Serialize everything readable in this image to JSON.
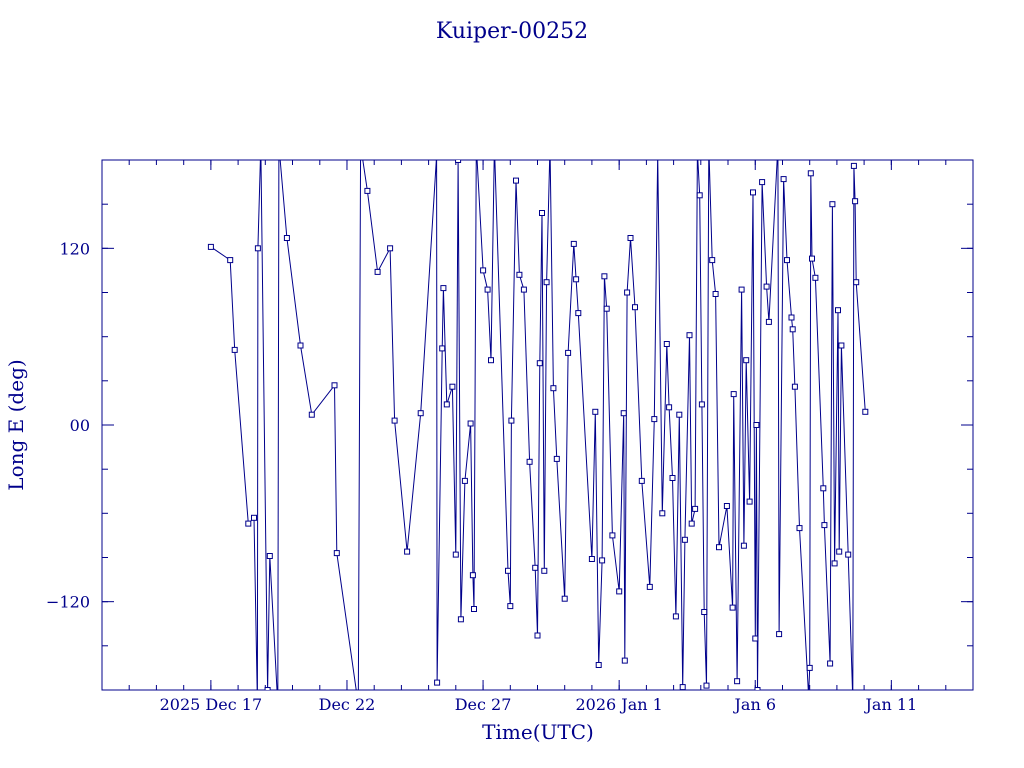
{
  "chart_data": {
    "type": "line",
    "title": "Kuiper-00252",
    "xlabel": "Time(UTC)",
    "ylabel": "Long E (deg)",
    "x_range": [
      "2025-12-13",
      "2026-01-14"
    ],
    "ylim": [
      -180,
      180
    ],
    "grid": false,
    "x_ticks": [
      {
        "date": "2025-12-17",
        "label": "2025 Dec 17"
      },
      {
        "date": "2025-12-22",
        "label": "Dec 22"
      },
      {
        "date": "2025-12-27",
        "label": "Dec 27"
      },
      {
        "date": "2026-01-01",
        "label": "2026 Jan  1"
      },
      {
        "date": "2026-01-06",
        "label": "Jan  6"
      },
      {
        "date": "2026-01-11",
        "label": "Jan 11"
      }
    ],
    "y_ticks": [
      {
        "value": 120,
        "label": "120"
      },
      {
        "value": 0,
        "label": "00"
      },
      {
        "value": -120,
        "label": "−120"
      }
    ],
    "colors": {
      "line": "#00008b",
      "axis": "#00008b"
    },
    "series": [
      {
        "points": [
          {
            "x": "2025-12-17T00:00",
            "y": 121
          },
          {
            "x": "2025-12-17T17:00",
            "y": 112
          },
          {
            "x": "2025-12-17T21:00",
            "y": 51
          },
          {
            "x": "2025-12-18T09:00",
            "y": -67
          },
          {
            "x": "2025-12-18T14:00",
            "y": -63
          },
          {
            "x": "2025-12-18T17:00",
            "y": -189
          },
          {
            "x": "2025-12-18T17:30",
            "y": 120
          },
          {
            "x": "2025-12-18T20:00",
            "y": 190
          },
          {
            "x": "2025-12-19T02:00",
            "y": -180
          },
          {
            "x": "2025-12-19T04:00",
            "y": -89
          },
          {
            "x": "2025-12-19T11:00",
            "y": -190
          },
          {
            "x": "2025-12-19T12:00",
            "y": 190
          },
          {
            "x": "2025-12-19T19:00",
            "y": 127
          },
          {
            "x": "2025-12-20T07:00",
            "y": 54
          },
          {
            "x": "2025-12-20T17:00",
            "y": 7
          },
          {
            "x": "2025-12-21T13:00",
            "y": 27
          },
          {
            "x": "2025-12-21T15:00",
            "y": -87
          },
          {
            "x": "2025-12-22T10:00",
            "y": -190
          },
          {
            "x": "2025-12-22T12:00",
            "y": 190
          },
          {
            "x": "2025-12-22T18:00",
            "y": 159
          },
          {
            "x": "2025-12-23T03:00",
            "y": 104
          },
          {
            "x": "2025-12-23T14:00",
            "y": 120
          },
          {
            "x": "2025-12-23T18:00",
            "y": 3
          },
          {
            "x": "2025-12-24T05:00",
            "y": -86
          },
          {
            "x": "2025-12-24T17:00",
            "y": 8
          },
          {
            "x": "2025-12-25T07:00",
            "y": 183
          },
          {
            "x": "2025-12-25T07:30",
            "y": -175
          },
          {
            "x": "2025-12-25T12:00",
            "y": 52
          },
          {
            "x": "2025-12-25T13:00",
            "y": 93
          },
          {
            "x": "2025-12-25T16:00",
            "y": 14
          },
          {
            "x": "2025-12-25T21:00",
            "y": 26
          },
          {
            "x": "2025-12-26T00:00",
            "y": -88
          },
          {
            "x": "2025-12-26T02:00",
            "y": 180
          },
          {
            "x": "2025-12-26T04:30",
            "y": -132
          },
          {
            "x": "2025-12-26T08:00",
            "y": -38
          },
          {
            "x": "2025-12-26T13:00",
            "y": 1
          },
          {
            "x": "2025-12-26T15:00",
            "y": -102
          },
          {
            "x": "2025-12-26T16:00",
            "y": -125
          },
          {
            "x": "2025-12-26T18:00",
            "y": 190
          },
          {
            "x": "2025-12-27T00:00",
            "y": 105
          },
          {
            "x": "2025-12-27T04:00",
            "y": 92
          },
          {
            "x": "2025-12-27T07:00",
            "y": 44
          },
          {
            "x": "2025-12-27T10:00",
            "y": 190
          },
          {
            "x": "2025-12-27T22:00",
            "y": -99
          },
          {
            "x": "2025-12-28T00:00",
            "y": -123
          },
          {
            "x": "2025-12-28T01:00",
            "y": 3
          },
          {
            "x": "2025-12-28T05:00",
            "y": 166
          },
          {
            "x": "2025-12-28T08:00",
            "y": 102
          },
          {
            "x": "2025-12-28T12:00",
            "y": 92
          },
          {
            "x": "2025-12-28T17:00",
            "y": -25
          },
          {
            "x": "2025-12-28T22:00",
            "y": -97
          },
          {
            "x": "2025-12-29T00:00",
            "y": -143
          },
          {
            "x": "2025-12-29T02:00",
            "y": 42
          },
          {
            "x": "2025-12-29T04:00",
            "y": 144
          },
          {
            "x": "2025-12-29T06:00",
            "y": -99
          },
          {
            "x": "2025-12-29T08:00",
            "y": 97
          },
          {
            "x": "2025-12-29T11:00",
            "y": 190
          },
          {
            "x": "2025-12-29T14:00",
            "y": 25
          },
          {
            "x": "2025-12-29T17:00",
            "y": -23
          },
          {
            "x": "2025-12-30T00:00",
            "y": -118
          },
          {
            "x": "2025-12-30T03:00",
            "y": 49
          },
          {
            "x": "2025-12-30T08:00",
            "y": 123
          },
          {
            "x": "2025-12-30T10:00",
            "y": 99
          },
          {
            "x": "2025-12-30T12:00",
            "y": 76
          },
          {
            "x": "2025-12-31T00:00",
            "y": -91
          },
          {
            "x": "2025-12-31T03:00",
            "y": 9
          },
          {
            "x": "2025-12-31T06:00",
            "y": -163
          },
          {
            "x": "2025-12-31T09:00",
            "y": -92
          },
          {
            "x": "2025-12-31T11:00",
            "y": 101
          },
          {
            "x": "2025-12-31T13:00",
            "y": 79
          },
          {
            "x": "2025-12-31T18:00",
            "y": -75
          },
          {
            "x": "2026-01-01T00:00",
            "y": -113
          },
          {
            "x": "2026-01-01T04:00",
            "y": 8
          },
          {
            "x": "2026-01-01T05:00",
            "y": -160
          },
          {
            "x": "2026-01-01T07:00",
            "y": 90
          },
          {
            "x": "2026-01-01T10:00",
            "y": 127
          },
          {
            "x": "2026-01-01T14:00",
            "y": 80
          },
          {
            "x": "2026-01-01T20:00",
            "y": -38
          },
          {
            "x": "2026-01-02T03:00",
            "y": -110
          },
          {
            "x": "2026-01-02T07:00",
            "y": 4
          },
          {
            "x": "2026-01-02T10:00",
            "y": 184
          },
          {
            "x": "2026-01-02T14:00",
            "y": -60
          },
          {
            "x": "2026-01-02T18:00",
            "y": 55
          },
          {
            "x": "2026-01-02T20:00",
            "y": 12
          },
          {
            "x": "2026-01-02T23:00",
            "y": -36
          },
          {
            "x": "2026-01-03T02:00",
            "y": -130
          },
          {
            "x": "2026-01-03T05:00",
            "y": 7
          },
          {
            "x": "2026-01-03T08:00",
            "y": -178
          },
          {
            "x": "2026-01-03T10:00",
            "y": -78
          },
          {
            "x": "2026-01-03T14:00",
            "y": 61
          },
          {
            "x": "2026-01-03T16:00",
            "y": -67
          },
          {
            "x": "2026-01-03T19:00",
            "y": -57
          },
          {
            "x": "2026-01-03T21:00",
            "y": 186
          },
          {
            "x": "2026-01-03T23:00",
            "y": 156
          },
          {
            "x": "2026-01-04T01:00",
            "y": 14
          },
          {
            "x": "2026-01-04T03:00",
            "y": -127
          },
          {
            "x": "2026-01-04T05:00",
            "y": -177
          },
          {
            "x": "2026-01-04T07:00",
            "y": 190
          },
          {
            "x": "2026-01-04T10:00",
            "y": 112
          },
          {
            "x": "2026-01-04T13:00",
            "y": 89
          },
          {
            "x": "2026-01-04T16:00",
            "y": -83
          },
          {
            "x": "2026-01-04T23:00",
            "y": -55
          },
          {
            "x": "2026-01-05T04:00",
            "y": -124
          },
          {
            "x": "2026-01-05T05:00",
            "y": 21
          },
          {
            "x": "2026-01-05T08:00",
            "y": -174
          },
          {
            "x": "2026-01-05T12:00",
            "y": 92
          },
          {
            "x": "2026-01-05T14:00",
            "y": -82
          },
          {
            "x": "2026-01-05T16:00",
            "y": 44
          },
          {
            "x": "2026-01-05T19:00",
            "y": -52
          },
          {
            "x": "2026-01-05T22:00",
            "y": 158
          },
          {
            "x": "2026-01-06T00:00",
            "y": -145
          },
          {
            "x": "2026-01-06T01:00",
            "y": 0
          },
          {
            "x": "2026-01-06T02:00",
            "y": -180
          },
          {
            "x": "2026-01-06T06:00",
            "y": 165
          },
          {
            "x": "2026-01-06T10:00",
            "y": 94
          },
          {
            "x": "2026-01-06T12:00",
            "y": 70
          },
          {
            "x": "2026-01-06T20:00",
            "y": 190
          },
          {
            "x": "2026-01-06T21:00",
            "y": -142
          },
          {
            "x": "2026-01-07T01:00",
            "y": 167
          },
          {
            "x": "2026-01-07T04:00",
            "y": 112
          },
          {
            "x": "2026-01-07T08:00",
            "y": 73
          },
          {
            "x": "2026-01-07T09:00",
            "y": 65
          },
          {
            "x": "2026-01-07T11:00",
            "y": 26
          },
          {
            "x": "2026-01-07T15:00",
            "y": -70
          },
          {
            "x": "2026-01-07T23:00",
            "y": -184
          },
          {
            "x": "2026-01-08T00:00",
            "y": -165
          },
          {
            "x": "2026-01-08T01:00",
            "y": 171
          },
          {
            "x": "2026-01-08T02:00",
            "y": 113
          },
          {
            "x": "2026-01-08T05:00",
            "y": 100
          },
          {
            "x": "2026-01-08T12:00",
            "y": -43
          },
          {
            "x": "2026-01-08T13:00",
            "y": -68
          },
          {
            "x": "2026-01-08T18:00",
            "y": -162
          },
          {
            "x": "2026-01-08T20:00",
            "y": 150
          },
          {
            "x": "2026-01-08T22:00",
            "y": -94
          },
          {
            "x": "2026-01-09T01:00",
            "y": 78
          },
          {
            "x": "2026-01-09T02:00",
            "y": -86
          },
          {
            "x": "2026-01-09T04:00",
            "y": 54
          },
          {
            "x": "2026-01-09T10:00",
            "y": -88
          },
          {
            "x": "2026-01-09T14:00",
            "y": -187
          },
          {
            "x": "2026-01-09T15:00",
            "y": 176
          },
          {
            "x": "2026-01-09T16:00",
            "y": 152
          },
          {
            "x": "2026-01-09T17:00",
            "y": 97
          },
          {
            "x": "2026-01-10T01:00",
            "y": 9
          }
        ]
      }
    ]
  }
}
